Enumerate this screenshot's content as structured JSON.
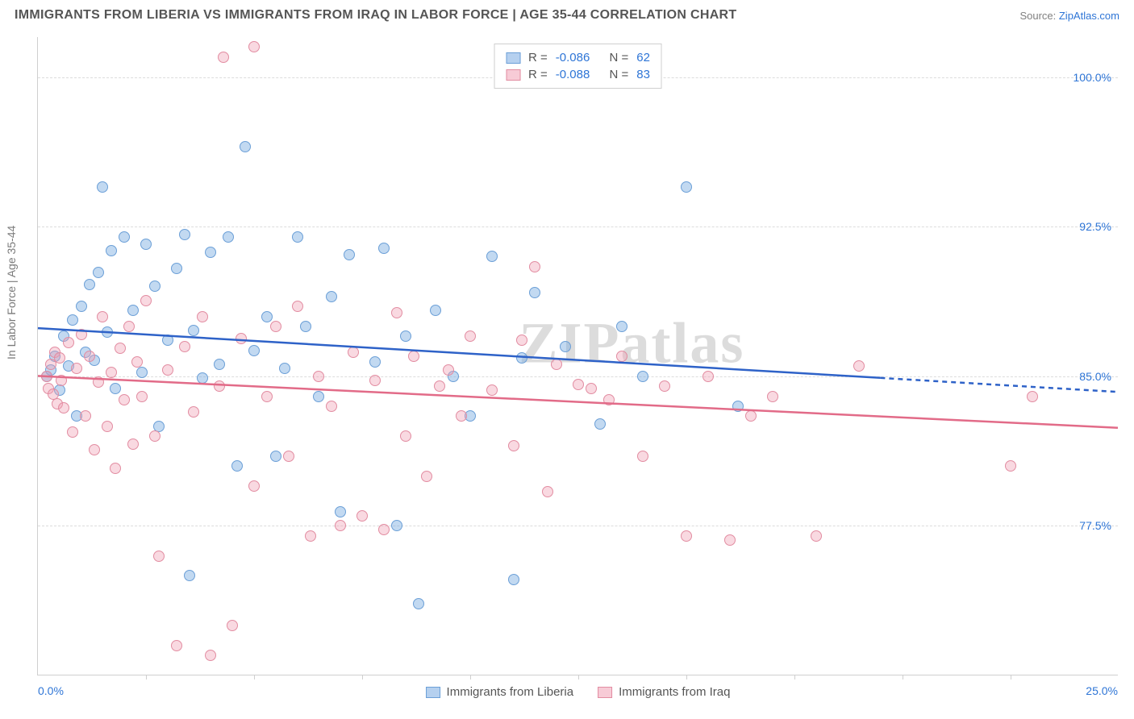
{
  "title": "IMMIGRANTS FROM LIBERIA VS IMMIGRANTS FROM IRAQ IN LABOR FORCE | AGE 35-44 CORRELATION CHART",
  "source_label": "Source: ",
  "source_link": "ZipAtlas.com",
  "ylabel": "In Labor Force | Age 35-44",
  "watermark": "ZIPatlas",
  "chart": {
    "type": "scatter",
    "background_color": "#ffffff",
    "grid_color": "#dcdcdc",
    "axis_color": "#cfcfcf",
    "tick_label_color": "#2e75d6",
    "xlim": [
      0,
      25
    ],
    "ylim": [
      70,
      102
    ],
    "yticks": [
      77.5,
      85.0,
      92.5,
      100.0
    ],
    "ytick_labels": [
      "77.5%",
      "85.0%",
      "92.5%",
      "100.0%"
    ],
    "xtick_labels": {
      "start": "0.0%",
      "end": "25.0%"
    },
    "xtick_positions_pct": [
      10,
      20,
      30,
      40,
      50,
      60,
      70,
      80,
      90
    ],
    "marker_radius": 7,
    "series": [
      {
        "id": "a",
        "label": "Immigrants from Liberia",
        "fill_color": "rgba(120,170,225,0.45)",
        "stroke_color": "#6b9fd7",
        "line_color": "#2e62c8",
        "line_width": 2.5,
        "R": "-0.086",
        "N": "62",
        "trend": {
          "x1": 0,
          "y1": 87.4,
          "x2": 25,
          "y2": 84.2,
          "solid_to_x": 19.5
        },
        "points": [
          [
            0.2,
            85.0
          ],
          [
            0.3,
            85.3
          ],
          [
            0.4,
            86.0
          ],
          [
            0.5,
            84.3
          ],
          [
            0.6,
            87.0
          ],
          [
            0.7,
            85.5
          ],
          [
            0.8,
            87.8
          ],
          [
            0.9,
            83.0
          ],
          [
            1.0,
            88.5
          ],
          [
            1.1,
            86.2
          ],
          [
            1.2,
            89.6
          ],
          [
            1.3,
            85.8
          ],
          [
            1.4,
            90.2
          ],
          [
            1.5,
            94.5
          ],
          [
            1.6,
            87.2
          ],
          [
            1.7,
            91.3
          ],
          [
            1.8,
            84.4
          ],
          [
            2.0,
            92.0
          ],
          [
            2.2,
            88.3
          ],
          [
            2.4,
            85.2
          ],
          [
            2.5,
            91.6
          ],
          [
            2.7,
            89.5
          ],
          [
            2.8,
            82.5
          ],
          [
            3.0,
            86.8
          ],
          [
            3.2,
            90.4
          ],
          [
            3.4,
            92.1
          ],
          [
            3.5,
            75.0
          ],
          [
            3.6,
            87.3
          ],
          [
            3.8,
            84.9
          ],
          [
            4.0,
            91.2
          ],
          [
            4.2,
            85.6
          ],
          [
            4.4,
            92.0
          ],
          [
            4.6,
            80.5
          ],
          [
            4.8,
            96.5
          ],
          [
            5.0,
            86.3
          ],
          [
            5.3,
            88.0
          ],
          [
            5.5,
            81.0
          ],
          [
            5.7,
            85.4
          ],
          [
            6.0,
            92.0
          ],
          [
            6.2,
            87.5
          ],
          [
            6.5,
            84.0
          ],
          [
            6.8,
            89.0
          ],
          [
            7.0,
            78.2
          ],
          [
            7.2,
            91.1
          ],
          [
            7.8,
            85.7
          ],
          [
            8.0,
            91.4
          ],
          [
            8.3,
            77.5
          ],
          [
            8.5,
            87.0
          ],
          [
            8.8,
            73.6
          ],
          [
            9.2,
            88.3
          ],
          [
            9.6,
            85.0
          ],
          [
            10.0,
            83.0
          ],
          [
            10.5,
            91.0
          ],
          [
            11.0,
            74.8
          ],
          [
            11.2,
            85.9
          ],
          [
            11.5,
            89.2
          ],
          [
            12.2,
            86.5
          ],
          [
            13.0,
            82.6
          ],
          [
            13.5,
            87.5
          ],
          [
            14.0,
            85.0
          ],
          [
            15.0,
            94.5
          ],
          [
            16.2,
            83.5
          ]
        ]
      },
      {
        "id": "b",
        "label": "Immigrants from Iraq",
        "fill_color": "rgba(240,160,180,0.40)",
        "stroke_color": "#e28ca1",
        "line_color": "#e26b88",
        "line_width": 2.5,
        "R": "-0.088",
        "N": "83",
        "trend": {
          "x1": 0,
          "y1": 85.0,
          "x2": 25,
          "y2": 82.4,
          "solid_to_x": 25
        },
        "points": [
          [
            0.2,
            85.0
          ],
          [
            0.25,
            84.4
          ],
          [
            0.3,
            85.6
          ],
          [
            0.35,
            84.1
          ],
          [
            0.4,
            86.2
          ],
          [
            0.45,
            83.6
          ],
          [
            0.5,
            85.9
          ],
          [
            0.55,
            84.8
          ],
          [
            0.6,
            83.4
          ],
          [
            0.7,
            86.7
          ],
          [
            0.8,
            82.2
          ],
          [
            0.9,
            85.4
          ],
          [
            1.0,
            87.1
          ],
          [
            1.1,
            83.0
          ],
          [
            1.2,
            86.0
          ],
          [
            1.3,
            81.3
          ],
          [
            1.4,
            84.7
          ],
          [
            1.5,
            88.0
          ],
          [
            1.6,
            82.5
          ],
          [
            1.7,
            85.2
          ],
          [
            1.8,
            80.4
          ],
          [
            1.9,
            86.4
          ],
          [
            2.0,
            83.8
          ],
          [
            2.1,
            87.5
          ],
          [
            2.2,
            81.6
          ],
          [
            2.3,
            85.7
          ],
          [
            2.4,
            84.0
          ],
          [
            2.5,
            88.8
          ],
          [
            2.7,
            82.0
          ],
          [
            2.8,
            76.0
          ],
          [
            3.0,
            85.3
          ],
          [
            3.2,
            71.5
          ],
          [
            3.4,
            86.5
          ],
          [
            3.6,
            83.2
          ],
          [
            3.8,
            88.0
          ],
          [
            4.0,
            71.0
          ],
          [
            4.2,
            84.5
          ],
          [
            4.3,
            101.0
          ],
          [
            4.5,
            72.5
          ],
          [
            4.7,
            86.9
          ],
          [
            5.0,
            79.5
          ],
          [
            5.0,
            101.5
          ],
          [
            5.3,
            84.0
          ],
          [
            5.5,
            87.5
          ],
          [
            5.8,
            81.0
          ],
          [
            6.0,
            88.5
          ],
          [
            6.3,
            77.0
          ],
          [
            6.5,
            85.0
          ],
          [
            6.8,
            83.5
          ],
          [
            7.0,
            77.5
          ],
          [
            7.3,
            86.2
          ],
          [
            7.5,
            78.0
          ],
          [
            7.8,
            84.8
          ],
          [
            8.0,
            77.3
          ],
          [
            8.3,
            88.2
          ],
          [
            8.5,
            82.0
          ],
          [
            8.7,
            86.0
          ],
          [
            9.0,
            80.0
          ],
          [
            9.3,
            84.5
          ],
          [
            9.5,
            85.3
          ],
          [
            9.8,
            83.0
          ],
          [
            10.0,
            87.0
          ],
          [
            10.5,
            84.3
          ],
          [
            11.0,
            81.5
          ],
          [
            11.2,
            86.8
          ],
          [
            11.5,
            90.5
          ],
          [
            11.8,
            79.2
          ],
          [
            12.0,
            85.6
          ],
          [
            12.5,
            84.6
          ],
          [
            12.8,
            84.4
          ],
          [
            13.2,
            83.8
          ],
          [
            13.5,
            86.0
          ],
          [
            14.0,
            81.0
          ],
          [
            14.5,
            84.5
          ],
          [
            15.0,
            77.0
          ],
          [
            15.5,
            85.0
          ],
          [
            16.0,
            76.8
          ],
          [
            16.5,
            83.0
          ],
          [
            17.0,
            84.0
          ],
          [
            18.0,
            77.0
          ],
          [
            19.0,
            85.5
          ],
          [
            22.5,
            80.5
          ],
          [
            23.0,
            84.0
          ]
        ]
      }
    ]
  },
  "stats_legend": {
    "r_label": "R =",
    "n_label": "N ="
  },
  "bottom_legend": {
    "items": [
      "Immigrants from Liberia",
      "Immigrants from Iraq"
    ]
  }
}
